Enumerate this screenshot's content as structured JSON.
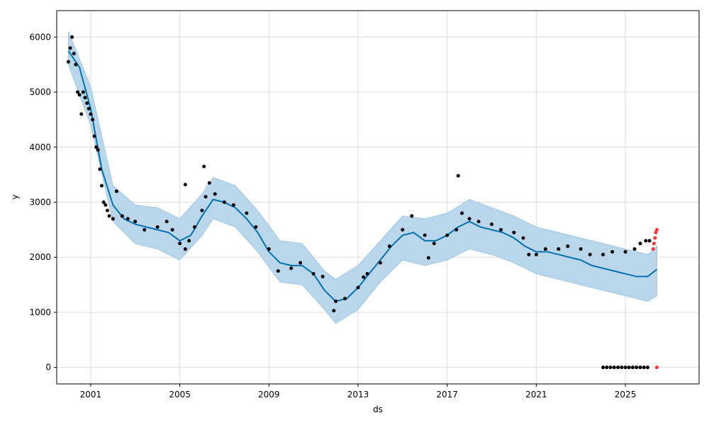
{
  "chart_data": {
    "type": "scatter",
    "title": "",
    "xlabel": "ds",
    "ylabel": "y",
    "x_ticks": [
      "2001",
      "2005",
      "2009",
      "2013",
      "2017",
      "2021",
      "2025"
    ],
    "y_ticks": [
      "0",
      "1000",
      "2000",
      "3000",
      "4000",
      "5000",
      "6000"
    ],
    "xlim": [
      "1999-06-24",
      "2028-04-23"
    ],
    "ylim": [
      -300,
      6480
    ],
    "grid": true,
    "colors": {
      "observed": "#000000",
      "forecast_line": "#0072b2",
      "uncertainty_band": "#b9d6ea",
      "band_edge": "#9ec8e6",
      "recent_points": "#ff3333"
    },
    "series": [
      {
        "role": "observed",
        "points": [
          [
            "2000-01-01",
            5550
          ],
          [
            "2000-02-01",
            5800
          ],
          [
            "2000-03-01",
            6000
          ],
          [
            "2000-04-01",
            5700
          ],
          [
            "2000-05-01",
            5500
          ],
          [
            "2000-06-01",
            5000
          ],
          [
            "2000-07-01",
            4950
          ],
          [
            "2000-08-01",
            4600
          ],
          [
            "2000-09-01",
            5000
          ],
          [
            "2000-10-01",
            4900
          ],
          [
            "2000-11-01",
            4800
          ],
          [
            "2000-12-01",
            4700
          ],
          [
            "2001-01-01",
            4600
          ],
          [
            "2001-02-01",
            4500
          ],
          [
            "2001-03-01",
            4200
          ],
          [
            "2001-04-01",
            4000
          ],
          [
            "2001-05-01",
            3950
          ],
          [
            "2001-06-01",
            3600
          ],
          [
            "2001-07-01",
            3300
          ],
          [
            "2001-08-01",
            3000
          ],
          [
            "2001-09-01",
            2950
          ],
          [
            "2001-10-01",
            2850
          ],
          [
            "2001-11-01",
            2750
          ],
          [
            "2002-01-01",
            2700
          ],
          [
            "2002-03-01",
            3200
          ],
          [
            "2002-06-01",
            2750
          ],
          [
            "2002-09-01",
            2700
          ],
          [
            "2003-01-01",
            2650
          ],
          [
            "2003-06-01",
            2500
          ],
          [
            "2004-01-01",
            2550
          ],
          [
            "2004-06-01",
            2650
          ],
          [
            "2004-09-01",
            2500
          ],
          [
            "2005-01-01",
            2250
          ],
          [
            "2005-04-01",
            2150
          ],
          [
            "2005-06-01",
            2300
          ],
          [
            "2005-09-01",
            2550
          ],
          [
            "2006-01-01",
            2850
          ],
          [
            "2006-03-01",
            3100
          ],
          [
            "2006-05-01",
            3350
          ],
          [
            "2006-08-01",
            3150
          ],
          [
            "2007-01-01",
            3000
          ],
          [
            "2007-06-01",
            2950
          ],
          [
            "2008-01-01",
            2800
          ],
          [
            "2008-06-01",
            2550
          ],
          [
            "2009-01-01",
            2150
          ],
          [
            "2009-06-01",
            1750
          ],
          [
            "2010-01-01",
            1800
          ],
          [
            "2010-06-01",
            1900
          ],
          [
            "2011-01-01",
            1700
          ],
          [
            "2011-06-01",
            1650
          ],
          [
            "2012-01-01",
            1200
          ],
          [
            "2012-06-01",
            1250
          ],
          [
            "2013-01-01",
            1450
          ],
          [
            "2013-06-01",
            1700
          ],
          [
            "2014-01-01",
            1900
          ],
          [
            "2014-06-01",
            2200
          ],
          [
            "2015-01-01",
            2500
          ],
          [
            "2015-06-01",
            2750
          ],
          [
            "2016-01-01",
            2400
          ],
          [
            "2016-06-01",
            2250
          ],
          [
            "2017-01-01",
            2400
          ],
          [
            "2017-06-01",
            2500
          ],
          [
            "2017-09-01",
            2800
          ],
          [
            "2018-01-01",
            2700
          ],
          [
            "2018-06-01",
            2650
          ],
          [
            "2019-01-01",
            2600
          ],
          [
            "2019-06-01",
            2500
          ],
          [
            "2020-01-01",
            2450
          ],
          [
            "2020-06-01",
            2350
          ],
          [
            "2020-09-01",
            2050
          ],
          [
            "2021-01-01",
            2050
          ],
          [
            "2021-06-01",
            2150
          ],
          [
            "2022-01-01",
            2150
          ],
          [
            "2022-06-01",
            2200
          ],
          [
            "2023-01-01",
            2150
          ],
          [
            "2023-06-01",
            2050
          ],
          [
            "2024-01-01",
            2050
          ],
          [
            "2024-06-01",
            2100
          ],
          [
            "2025-01-01",
            2100
          ],
          [
            "2025-06-01",
            2150
          ],
          [
            "2025-09-01",
            2250
          ],
          [
            "2025-12-01",
            2300
          ],
          [
            "2026-02-01",
            2300
          ]
        ]
      },
      {
        "role": "observed_outliers",
        "points": [
          [
            "2005-04-01",
            3320
          ],
          [
            "2006-02-01",
            3650
          ],
          [
            "2017-07-01",
            3480
          ],
          [
            "2011-12-01",
            1030
          ],
          [
            "2013-04-01",
            1640
          ],
          [
            "2016-03-01",
            1990
          ]
        ]
      },
      {
        "role": "observed_zero_cluster",
        "points": [
          [
            "2024-01-01",
            0
          ],
          [
            "2024-03-01",
            0
          ],
          [
            "2024-05-01",
            0
          ],
          [
            "2024-07-01",
            0
          ],
          [
            "2024-09-01",
            0
          ],
          [
            "2024-11-01",
            0
          ],
          [
            "2025-01-01",
            0
          ],
          [
            "2025-03-01",
            0
          ],
          [
            "2025-05-01",
            0
          ],
          [
            "2025-07-01",
            0
          ],
          [
            "2025-09-01",
            0
          ],
          [
            "2025-11-01",
            0
          ],
          [
            "2026-01-01",
            0
          ]
        ]
      },
      {
        "role": "recent_points",
        "points": [
          [
            "2026-04-01",
            2150
          ],
          [
            "2026-04-15",
            2250
          ],
          [
            "2026-05-01",
            2350
          ],
          [
            "2026-05-15",
            2450
          ],
          [
            "2026-06-01",
            2500
          ],
          [
            "2026-06-01",
            0
          ]
        ]
      },
      {
        "role": "forecast",
        "points": [
          [
            "2000-01-01",
            5750
          ],
          [
            "2000-07-01",
            5450
          ],
          [
            "2001-01-01",
            4700
          ],
          [
            "2001-07-01",
            3600
          ],
          [
            "2002-01-01",
            2950
          ],
          [
            "2002-07-01",
            2700
          ],
          [
            "2003-01-01",
            2600
          ],
          [
            "2003-07-01",
            2550
          ],
          [
            "2004-01-01",
            2500
          ],
          [
            "2004-07-01",
            2450
          ],
          [
            "2005-01-01",
            2300
          ],
          [
            "2005-07-01",
            2400
          ],
          [
            "2006-01-01",
            2750
          ],
          [
            "2006-07-01",
            3050
          ],
          [
            "2007-01-01",
            3000
          ],
          [
            "2007-07-01",
            2900
          ],
          [
            "2008-01-01",
            2700
          ],
          [
            "2008-07-01",
            2450
          ],
          [
            "2009-01-01",
            2100
          ],
          [
            "2009-07-01",
            1900
          ],
          [
            "2010-01-01",
            1850
          ],
          [
            "2010-07-01",
            1850
          ],
          [
            "2011-01-01",
            1700
          ],
          [
            "2011-07-01",
            1400
          ],
          [
            "2012-01-01",
            1200
          ],
          [
            "2012-07-01",
            1250
          ],
          [
            "2013-01-01",
            1450
          ],
          [
            "2013-07-01",
            1700
          ],
          [
            "2014-01-01",
            1950
          ],
          [
            "2014-07-01",
            2200
          ],
          [
            "2015-01-01",
            2400
          ],
          [
            "2015-07-01",
            2450
          ],
          [
            "2016-01-01",
            2300
          ],
          [
            "2016-07-01",
            2300
          ],
          [
            "2017-01-01",
            2400
          ],
          [
            "2017-07-01",
            2550
          ],
          [
            "2018-01-01",
            2650
          ],
          [
            "2018-07-01",
            2550
          ],
          [
            "2019-01-01",
            2500
          ],
          [
            "2019-07-01",
            2450
          ],
          [
            "2020-01-01",
            2350
          ],
          [
            "2020-07-01",
            2200
          ],
          [
            "2021-01-01",
            2100
          ],
          [
            "2021-07-01",
            2100
          ],
          [
            "2022-01-01",
            2050
          ],
          [
            "2022-07-01",
            2000
          ],
          [
            "2023-01-01",
            1950
          ],
          [
            "2023-07-01",
            1850
          ],
          [
            "2024-01-01",
            1800
          ],
          [
            "2024-07-01",
            1750
          ],
          [
            "2025-01-01",
            1700
          ],
          [
            "2025-07-01",
            1650
          ],
          [
            "2026-01-01",
            1650
          ],
          [
            "2026-06-01",
            1780
          ]
        ]
      },
      {
        "role": "uncertainty_band",
        "lower": [
          [
            "2000-01-01",
            5500
          ],
          [
            "2001-01-01",
            4400
          ],
          [
            "2002-01-01",
            2650
          ],
          [
            "2003-01-01",
            2250
          ],
          [
            "2004-01-01",
            2150
          ],
          [
            "2005-01-01",
            1950
          ],
          [
            "2006-01-01",
            2400
          ],
          [
            "2006-07-01",
            2700
          ],
          [
            "2007-07-01",
            2550
          ],
          [
            "2008-07-01",
            2100
          ],
          [
            "2009-07-01",
            1550
          ],
          [
            "2010-07-01",
            1500
          ],
          [
            "2011-07-01",
            1050
          ],
          [
            "2012-01-01",
            800
          ],
          [
            "2013-01-01",
            1050
          ],
          [
            "2014-01-01",
            1550
          ],
          [
            "2015-01-01",
            1950
          ],
          [
            "2016-01-01",
            1850
          ],
          [
            "2017-01-01",
            1950
          ],
          [
            "2018-01-01",
            2150
          ],
          [
            "2019-01-01",
            2050
          ],
          [
            "2020-01-01",
            1900
          ],
          [
            "2021-01-01",
            1700
          ],
          [
            "2022-01-01",
            1600
          ],
          [
            "2023-01-01",
            1500
          ],
          [
            "2024-01-01",
            1400
          ],
          [
            "2025-01-01",
            1300
          ],
          [
            "2026-01-01",
            1200
          ],
          [
            "2026-06-01",
            1300
          ]
        ],
        "upper": [
          [
            "2000-01-01",
            6100
          ],
          [
            "2001-01-01",
            5100
          ],
          [
            "2002-01-01",
            3300
          ],
          [
            "2003-01-01",
            2950
          ],
          [
            "2004-01-01",
            2900
          ],
          [
            "2005-01-01",
            2700
          ],
          [
            "2006-01-01",
            3150
          ],
          [
            "2006-07-01",
            3450
          ],
          [
            "2007-07-01",
            3300
          ],
          [
            "2008-07-01",
            2850
          ],
          [
            "2009-07-01",
            2300
          ],
          [
            "2010-07-01",
            2250
          ],
          [
            "2011-07-01",
            1750
          ],
          [
            "2012-01-01",
            1600
          ],
          [
            "2013-01-01",
            1850
          ],
          [
            "2014-01-01",
            2300
          ],
          [
            "2015-01-01",
            2750
          ],
          [
            "2016-01-01",
            2700
          ],
          [
            "2017-01-01",
            2800
          ],
          [
            "2018-01-01",
            3050
          ],
          [
            "2019-01-01",
            2900
          ],
          [
            "2020-01-01",
            2750
          ],
          [
            "2021-01-01",
            2550
          ],
          [
            "2022-01-01",
            2450
          ],
          [
            "2023-01-01",
            2350
          ],
          [
            "2024-01-01",
            2250
          ],
          [
            "2025-01-01",
            2150
          ],
          [
            "2026-01-01",
            2050
          ],
          [
            "2026-06-01",
            2200
          ]
        ]
      }
    ]
  }
}
